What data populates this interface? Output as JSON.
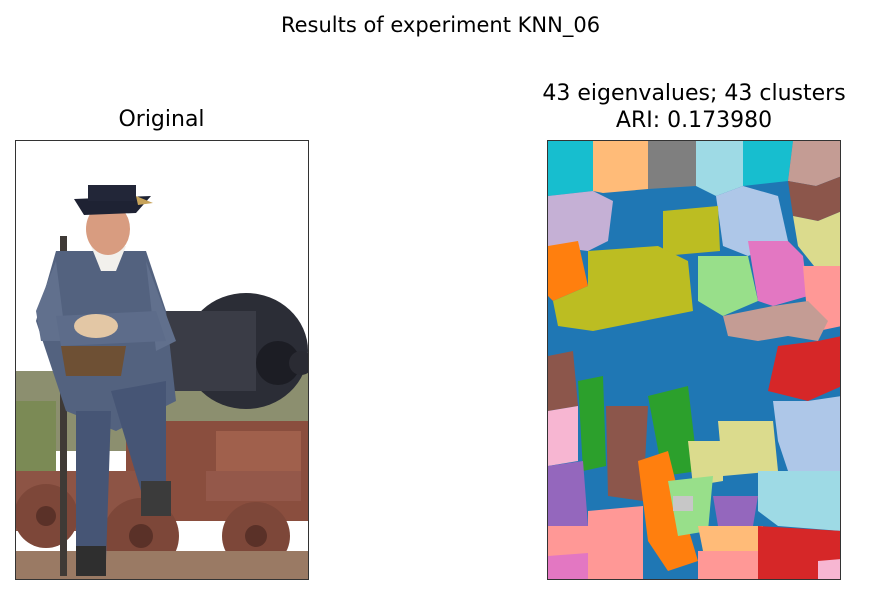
{
  "figure": {
    "suptitle": "Results of experiment KNN_06",
    "left_title": "Original",
    "right_title_line1": "43 eigenvalues; 43 clusters",
    "right_title_line2": "ARI: 0.173980"
  },
  "chart_data": {
    "type": "image-comparison",
    "panels": [
      {
        "title": "Original",
        "content": "photograph of a man in a tricorn hat seated on a cannon"
      },
      {
        "title": "43 eigenvalues; 43 clusters / ARI: 0.173980",
        "content": "segmentation map",
        "clusters": 43,
        "ari": 0.17398
      }
    ],
    "palette": [
      "#17becf",
      "#ffbb78",
      "#7f7f7f",
      "#9edae5",
      "#c49c94",
      "#c5b0d5",
      "#aec7e8",
      "#8c564b",
      "#bcbd22",
      "#dbdb8d",
      "#ff7f0e",
      "#98df8a",
      "#e377c2",
      "#ff9896",
      "#1f77b4",
      "#2ca02c",
      "#d62728",
      "#9467bd",
      "#f7b6d2"
    ]
  }
}
